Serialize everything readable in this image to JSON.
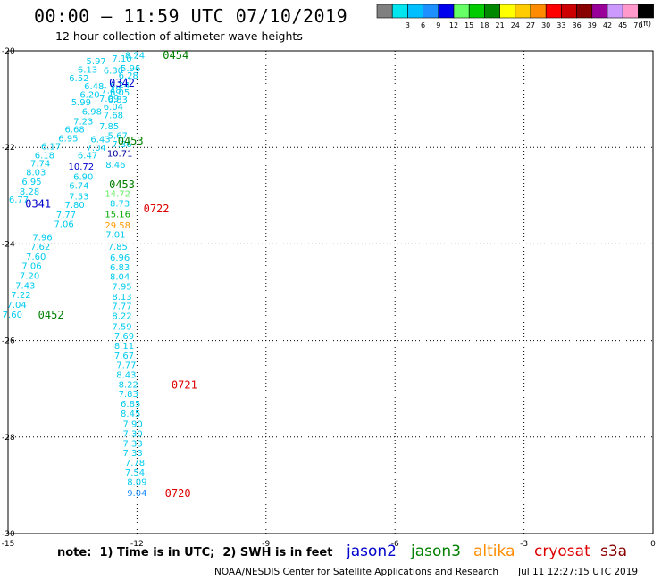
{
  "title": "00:00 – 11:59 UTC 07/10/2019",
  "subtitle": "12 hour collection of altimeter wave heights",
  "note": "note:  1) Time is in UTC;  2) SWH is in feet",
  "credit": "NOAA/NESDIS Center for Satellite Applications and Research",
  "generated": "Jul 11 12:27:15 UTC 2019",
  "satellites": [
    {
      "name": "jason2",
      "color": "#0000cc"
    },
    {
      "name": "jason3",
      "color": "#008000"
    },
    {
      "name": "altika",
      "color": "#ff8c00"
    },
    {
      "name": "cryosat",
      "color": "#dd0000"
    },
    {
      "name": "s3a",
      "color": "#880000"
    }
  ],
  "legend": {
    "units": "(ft)",
    "bins": [
      {
        "label": "",
        "color": "#808080"
      },
      {
        "label": "3",
        "color": "#00e5ee"
      },
      {
        "label": "6",
        "color": "#00bfff"
      },
      {
        "label": "9",
        "color": "#1e90ff"
      },
      {
        "label": "12",
        "color": "#0000ee"
      },
      {
        "label": "15",
        "color": "#66ff66"
      },
      {
        "label": "18",
        "color": "#00cc00"
      },
      {
        "label": "21",
        "color": "#008800"
      },
      {
        "label": "24",
        "color": "#ffff00"
      },
      {
        "label": "27",
        "color": "#ffcc00"
      },
      {
        "label": "30",
        "color": "#ff8c00"
      },
      {
        "label": "33",
        "color": "#ff0000"
      },
      {
        "label": "36",
        "color": "#cc0000"
      },
      {
        "label": "39",
        "color": "#880000"
      },
      {
        "label": "42",
        "color": "#990099"
      },
      {
        "label": "45",
        "color": "#cc99ff"
      },
      {
        "label": "70",
        "color": "#ff99cc"
      },
      {
        "label": "",
        "color": "#000000"
      }
    ]
  },
  "axes": {
    "x_ticks": [
      -15,
      -12,
      -9,
      -6,
      -3,
      0
    ],
    "y_ticks": [
      -20,
      -22,
      -24,
      -26,
      -28,
      -30
    ],
    "xlim": [
      -15,
      0
    ],
    "ylim": [
      -30,
      -20
    ]
  },
  "swh_ranges": {
    "cyan": "#00bbee",
    "lightcyan": "#00ccee"
  },
  "observations": [
    {
      "lon": -12.05,
      "lat": -20.08,
      "text": "8.24",
      "color": "#00ccee"
    },
    {
      "lon": -12.35,
      "lat": -20.15,
      "text": "7.10",
      "color": "#00ccee"
    },
    {
      "lon": -12.95,
      "lat": -20.2,
      "text": "5.97",
      "color": "#00ccee"
    },
    {
      "lon": -12.15,
      "lat": -20.35,
      "text": "5.96",
      "color": "#00ccee"
    },
    {
      "lon": -12.55,
      "lat": -20.4,
      "text": "6.30",
      "color": "#00ccee"
    },
    {
      "lon": -13.15,
      "lat": -20.38,
      "text": "6.13",
      "color": "#00ccee"
    },
    {
      "lon": -12.2,
      "lat": -20.5,
      "text": "6.28",
      "color": "#00ccee"
    },
    {
      "lon": -13.35,
      "lat": -20.55,
      "text": "6.52",
      "color": "#00ccee"
    },
    {
      "lon": -12.4,
      "lat": -20.7,
      "text": "6.24",
      "color": "#00ccee"
    },
    {
      "lon": -13.0,
      "lat": -20.72,
      "text": "6.48",
      "color": "#00ccee"
    },
    {
      "lon": -12.4,
      "lat": -20.85,
      "text": "6.05",
      "color": "#00ccee"
    },
    {
      "lon": -12.6,
      "lat": -20.8,
      "text": "7.48",
      "color": "#00ccee"
    },
    {
      "lon": -13.1,
      "lat": -20.9,
      "text": "6.20",
      "color": "#00ccee"
    },
    {
      "lon": -12.45,
      "lat": -21.0,
      "text": "6.83",
      "color": "#00ccee"
    },
    {
      "lon": -12.65,
      "lat": -20.98,
      "text": "7.09",
      "color": "#00ccee"
    },
    {
      "lon": -13.3,
      "lat": -21.05,
      "text": "5.99",
      "color": "#00ccee"
    },
    {
      "lon": -12.55,
      "lat": -21.15,
      "text": "6.04",
      "color": "#00ccee"
    },
    {
      "lon": -13.05,
      "lat": -21.25,
      "text": "6.98",
      "color": "#00ccee"
    },
    {
      "lon": -12.55,
      "lat": -21.32,
      "text": "7.68",
      "color": "#00ccee"
    },
    {
      "lon": -13.25,
      "lat": -21.45,
      "text": "7.23",
      "color": "#00ccee"
    },
    {
      "lon": -12.65,
      "lat": -21.55,
      "text": "7.85",
      "color": "#00ccee"
    },
    {
      "lon": -13.45,
      "lat": -21.62,
      "text": "6.68",
      "color": "#00ccee"
    },
    {
      "lon": -12.45,
      "lat": -21.75,
      "text": "5.67",
      "color": "#00ccee"
    },
    {
      "lon": -13.6,
      "lat": -21.8,
      "text": "6.95",
      "color": "#00ccee"
    },
    {
      "lon": -12.85,
      "lat": -21.82,
      "text": "6.43",
      "color": "#00ccee"
    },
    {
      "lon": -14.0,
      "lat": -21.97,
      "text": "6.17",
      "color": "#00ccee"
    },
    {
      "lon": -12.35,
      "lat": -21.92,
      "text": "7.36",
      "color": "#00ccee"
    },
    {
      "lon": -12.95,
      "lat": -22.0,
      "text": "7.04",
      "color": "#00ccee"
    },
    {
      "lon": -14.15,
      "lat": -22.15,
      "text": "6.18",
      "color": "#00ccee"
    },
    {
      "lon": -13.15,
      "lat": -22.15,
      "text": "6.47",
      "color": "#00ccee"
    },
    {
      "lon": -12.4,
      "lat": -22.12,
      "text": "10.71",
      "color": "#000099"
    },
    {
      "lon": -14.25,
      "lat": -22.32,
      "text": "7.74",
      "color": "#00ccee"
    },
    {
      "lon": -13.3,
      "lat": -22.38,
      "text": "10.72",
      "color": "#0000cc"
    },
    {
      "lon": -12.5,
      "lat": -22.35,
      "text": "8.46",
      "color": "#00ccee"
    },
    {
      "lon": -14.35,
      "lat": -22.5,
      "text": "8.03",
      "color": "#00ccee"
    },
    {
      "lon": -13.25,
      "lat": -22.6,
      "text": "6.90",
      "color": "#00ccee"
    },
    {
      "lon": -14.45,
      "lat": -22.7,
      "text": "6.95",
      "color": "#00ccee"
    },
    {
      "lon": -13.35,
      "lat": -22.78,
      "text": "6.74",
      "color": "#00ccee"
    },
    {
      "lon": -14.5,
      "lat": -22.9,
      "text": "8.28",
      "color": "#00ccee"
    },
    {
      "lon": -12.45,
      "lat": -22.95,
      "text": "14.72",
      "color": "#66ee66"
    },
    {
      "lon": -13.35,
      "lat": -23.0,
      "text": "7.53",
      "color": "#00ccee"
    },
    {
      "lon": -14.75,
      "lat": -23.07,
      "text": "6.77",
      "color": "#00ccee"
    },
    {
      "lon": -13.45,
      "lat": -23.18,
      "text": "7.80",
      "color": "#00ccee"
    },
    {
      "lon": -12.4,
      "lat": -23.15,
      "text": "8.73",
      "color": "#00ccee"
    },
    {
      "lon": -13.65,
      "lat": -23.38,
      "text": "7.77",
      "color": "#00ccee"
    },
    {
      "lon": -12.45,
      "lat": -23.37,
      "text": "15.16",
      "color": "#00aa00"
    },
    {
      "lon": -13.7,
      "lat": -23.58,
      "text": "7.06",
      "color": "#00ccee"
    },
    {
      "lon": -12.45,
      "lat": -23.6,
      "text": "29.58",
      "color": "#ff9900"
    },
    {
      "lon": -12.5,
      "lat": -23.8,
      "text": "7.01",
      "color": "#00ccee"
    },
    {
      "lon": -14.2,
      "lat": -23.85,
      "text": "7.96",
      "color": "#00ccee"
    },
    {
      "lon": -12.45,
      "lat": -24.05,
      "text": "7.85",
      "color": "#00ccee"
    },
    {
      "lon": -14.25,
      "lat": -24.05,
      "text": "7.62",
      "color": "#00ccee"
    },
    {
      "lon": -12.4,
      "lat": -24.27,
      "text": "6.96",
      "color": "#00ccee"
    },
    {
      "lon": -14.35,
      "lat": -24.25,
      "text": "7.60",
      "color": "#00ccee"
    },
    {
      "lon": -12.4,
      "lat": -24.47,
      "text": "6.83",
      "color": "#00ccee"
    },
    {
      "lon": -14.45,
      "lat": -24.45,
      "text": "7.06",
      "color": "#00ccee"
    },
    {
      "lon": -12.4,
      "lat": -24.67,
      "text": "8.04",
      "color": "#00ccee"
    },
    {
      "lon": -14.5,
      "lat": -24.65,
      "text": "7.20",
      "color": "#00ccee"
    },
    {
      "lon": -12.35,
      "lat": -24.87,
      "text": "7.95",
      "color": "#00ccee"
    },
    {
      "lon": -14.6,
      "lat": -24.85,
      "text": "7.43",
      "color": "#00ccee"
    },
    {
      "lon": -14.7,
      "lat": -25.05,
      "text": "7.22",
      "color": "#00ccee"
    },
    {
      "lon": -12.35,
      "lat": -25.08,
      "text": "8.13",
      "color": "#00ccee"
    },
    {
      "lon": -14.8,
      "lat": -25.25,
      "text": "7.04",
      "color": "#00ccee"
    },
    {
      "lon": -12.35,
      "lat": -25.28,
      "text": "7.77",
      "color": "#00ccee"
    },
    {
      "lon": -14.9,
      "lat": -25.45,
      "text": "7.60",
      "color": "#00ccee"
    },
    {
      "lon": -12.35,
      "lat": -25.48,
      "text": "8.22",
      "color": "#00ccee"
    },
    {
      "lon": -12.35,
      "lat": -25.7,
      "text": "7.59",
      "color": "#00ccee"
    },
    {
      "lon": -12.3,
      "lat": -25.9,
      "text": "7.69",
      "color": "#00ccee"
    },
    {
      "lon": -12.3,
      "lat": -26.1,
      "text": "8.11",
      "color": "#00ccee"
    },
    {
      "lon": -12.3,
      "lat": -26.3,
      "text": "7.67",
      "color": "#00ccee"
    },
    {
      "lon": -12.25,
      "lat": -26.5,
      "text": "7.77",
      "color": "#00ccee"
    },
    {
      "lon": -12.25,
      "lat": -26.7,
      "text": "8.43",
      "color": "#00ccee"
    },
    {
      "lon": -12.2,
      "lat": -26.9,
      "text": "8.22",
      "color": "#00ccee"
    },
    {
      "lon": -12.2,
      "lat": -27.1,
      "text": "7.83",
      "color": "#00ccee"
    },
    {
      "lon": -12.15,
      "lat": -27.3,
      "text": "6.85",
      "color": "#00ccee"
    },
    {
      "lon": -12.15,
      "lat": -27.5,
      "text": "8.45",
      "color": "#00ccee"
    },
    {
      "lon": -12.1,
      "lat": -27.72,
      "text": "7.90",
      "color": "#00ccee"
    },
    {
      "lon": -12.1,
      "lat": -27.92,
      "text": "7.30",
      "color": "#00ccee"
    },
    {
      "lon": -12.1,
      "lat": -28.12,
      "text": "7.33",
      "color": "#00ccee"
    },
    {
      "lon": -12.1,
      "lat": -28.32,
      "text": "7.33",
      "color": "#00ccee"
    },
    {
      "lon": -12.05,
      "lat": -28.52,
      "text": "7.78",
      "color": "#00ccee"
    },
    {
      "lon": -12.05,
      "lat": -28.72,
      "text": "7.54",
      "color": "#00ccee"
    },
    {
      "lon": -12.0,
      "lat": -28.92,
      "text": "8.09",
      "color": "#00ccee"
    },
    {
      "lon": -12.0,
      "lat": -29.15,
      "text": "9.04",
      "color": "#1e90ff"
    }
  ],
  "pass_labels": [
    {
      "lon": -11.1,
      "lat": -20.07,
      "text": "0454",
      "color": "#008000"
    },
    {
      "lon": -12.35,
      "lat": -20.65,
      "text": "0342",
      "color": "#0000cc"
    },
    {
      "lon": -12.15,
      "lat": -21.85,
      "text": "0453",
      "color": "#008000"
    },
    {
      "lon": -12.35,
      "lat": -22.75,
      "text": "0453",
      "color": "#008000"
    },
    {
      "lon": -14.3,
      "lat": -23.15,
      "text": "0341",
      "color": "#0000cc"
    },
    {
      "lon": -11.55,
      "lat": -23.25,
      "text": "0722",
      "color": "#dd0000"
    },
    {
      "lon": -14.0,
      "lat": -25.45,
      "text": "0452",
      "color": "#008000"
    },
    {
      "lon": -10.9,
      "lat": -26.9,
      "text": "0721",
      "color": "#dd0000"
    },
    {
      "lon": -11.05,
      "lat": -29.15,
      "text": "0720",
      "color": "#dd0000"
    }
  ]
}
